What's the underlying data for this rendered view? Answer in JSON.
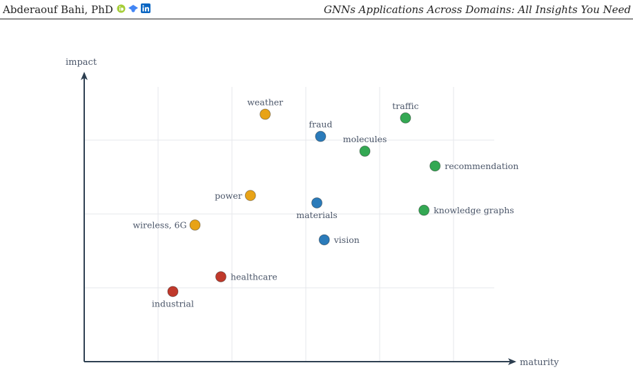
{
  "header": {
    "author": "Abderaouf Bahi, PhD",
    "icons": [
      "orcid-icon",
      "scholar-icon",
      "linkedin-icon"
    ],
    "title": "GNNs Applications Across Domains: All Insights You Need"
  },
  "colors": {
    "axis": "#2c3e50",
    "grid": "#e5e7eb",
    "label": "#4a5568",
    "groups": {
      "green": "#34a853",
      "blue": "#2b7bba",
      "orange": "#e8a317",
      "red": "#c0392b"
    }
  },
  "chart_data": {
    "type": "scatter",
    "title": "",
    "xlabel": "maturity",
    "ylabel": "impact",
    "xlim": [
      0,
      6
    ],
    "ylim": [
      0,
      3.8
    ],
    "grid": true,
    "legend": "none",
    "points": [
      {
        "label": "weather",
        "x": 2.45,
        "y": 3.35,
        "group": "orange"
      },
      {
        "label": "traffic",
        "x": 4.35,
        "y": 3.3,
        "group": "green"
      },
      {
        "label": "fraud",
        "x": 3.2,
        "y": 3.05,
        "group": "blue"
      },
      {
        "label": "molecules",
        "x": 3.8,
        "y": 2.85,
        "group": "green"
      },
      {
        "label": "recommendation",
        "x": 4.75,
        "y": 2.65,
        "group": "green"
      },
      {
        "label": "power",
        "x": 2.25,
        "y": 2.25,
        "group": "orange"
      },
      {
        "label": "materials",
        "x": 3.15,
        "y": 2.15,
        "group": "blue"
      },
      {
        "label": "knowledge graphs",
        "x": 4.6,
        "y": 2.05,
        "group": "green"
      },
      {
        "label": "wireless, 6G",
        "x": 1.5,
        "y": 1.85,
        "group": "orange"
      },
      {
        "label": "vision",
        "x": 3.25,
        "y": 1.65,
        "group": "blue"
      },
      {
        "label": "healthcare",
        "x": 1.85,
        "y": 1.15,
        "group": "red"
      },
      {
        "label": "industrial",
        "x": 1.2,
        "y": 0.95,
        "group": "red"
      }
    ]
  }
}
